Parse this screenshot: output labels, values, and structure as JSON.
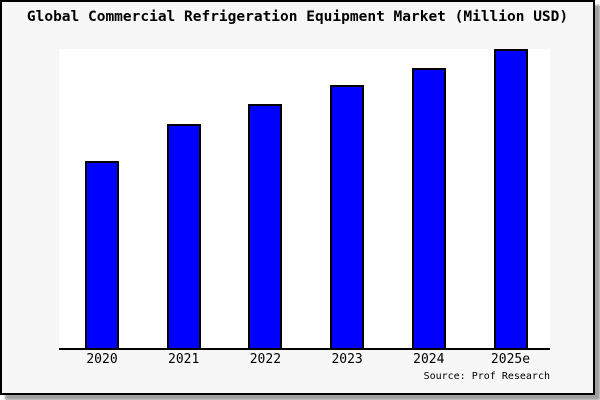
{
  "title": "Global Commercial Refrigeration Equipment Market (Million USD)",
  "source": "Source: Prof Research",
  "colors": {
    "bar_fill": "#0000FF",
    "bar_border": "#000000",
    "frame_background": "#F7F7F7",
    "plot_background": "#FFFFFF",
    "frame_border": "#000000",
    "axis_line": "#000000",
    "shadow": "#A0A0A0",
    "text": "#000000"
  },
  "chart_data": {
    "type": "bar",
    "title": "Global Commercial Refrigeration Equipment Market (Million USD)",
    "categories": [
      "2020",
      "2021",
      "2022",
      "2023",
      "2024",
      "2025e"
    ],
    "values_pct_of_max": [
      62.5,
      74.8,
      81.5,
      87.8,
      93.7,
      100.0
    ],
    "xlabel": "",
    "ylabel": "",
    "y_axis_labeled": false,
    "y_tick_labels": [],
    "grid": false,
    "legend_position": "none",
    "bar_color": "#0000FF",
    "annotations": [
      "Source: Prof Research"
    ]
  }
}
